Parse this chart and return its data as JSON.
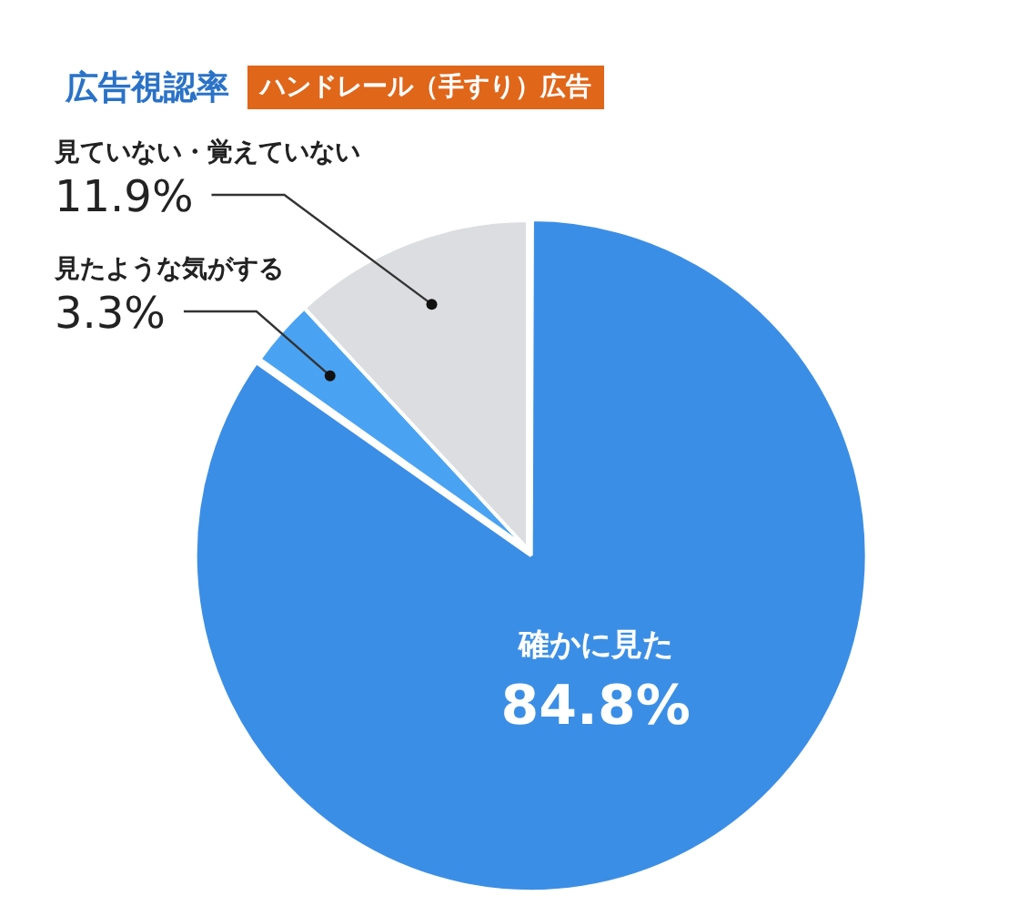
{
  "chart_data": {
    "type": "pie",
    "title": "広告視認率",
    "subtitle": "ハンドレール（手すり）広告",
    "categories": [
      "確かに見た",
      "見たような気がする",
      "見ていない・覚えていない"
    ],
    "values": [
      84.8,
      3.3,
      11.9
    ],
    "colors": [
      "#3b8ee6",
      "#4aa3f2",
      "#dcdde0"
    ],
    "value_labels": [
      "84.8%",
      "3.3%",
      "11.9%"
    ],
    "legend": false
  }
}
